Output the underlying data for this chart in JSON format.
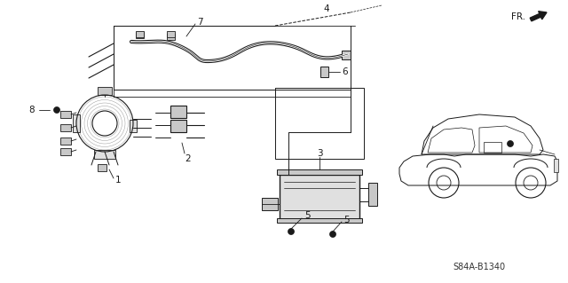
{
  "bg_color": "#ffffff",
  "diagram_code": "S84A-B1340",
  "fr_label": "FR.",
  "line_color": "#1a1a1a",
  "gray_fill": "#c8c8c8",
  "light_gray": "#e0e0e0",
  "dark_gray": "#555555",
  "font_size_label": 7,
  "font_size_code": 7
}
